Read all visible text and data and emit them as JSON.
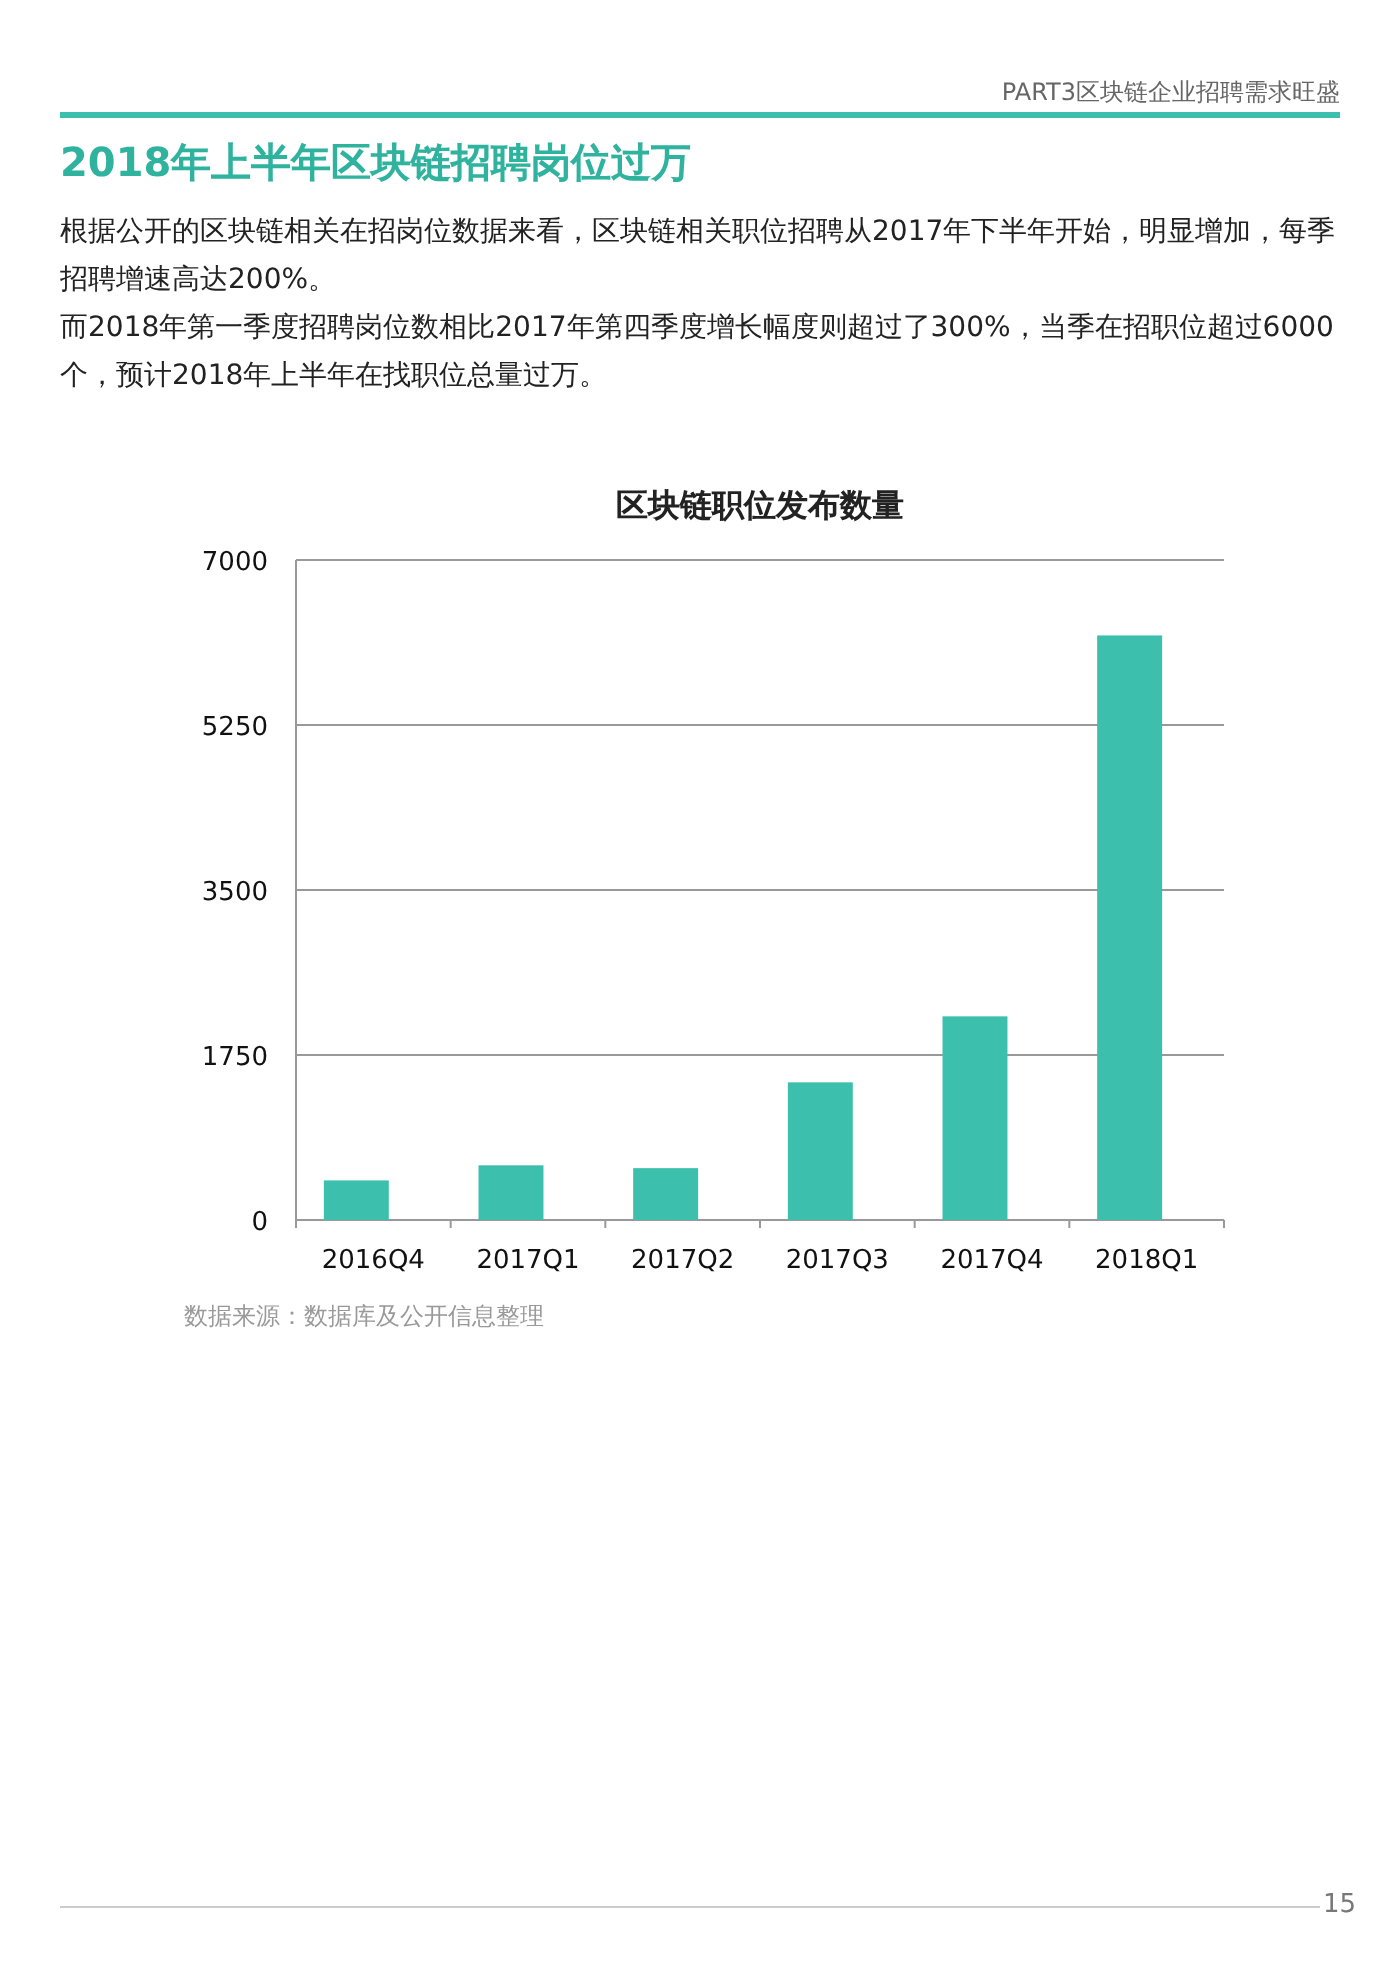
{
  "chart_data": {
    "type": "bar",
    "title": "区块链职位发布数量",
    "categories": [
      "2016Q4",
      "2017Q1",
      "2017Q2",
      "2017Q3",
      "2017Q4",
      "2018Q1"
    ],
    "values": [
      420,
      580,
      550,
      1460,
      2160,
      6200
    ],
    "color": "#3cc0ad",
    "ylim": [
      0,
      7000
    ],
    "yticks": [
      0,
      1750,
      3500,
      5250,
      7000
    ],
    "grid": "y",
    "annotations": [
      "PART3区块链企业招聘需求旺盛",
      "2018年上半年区块链招聘岗位过万",
      "根据公开的区块链相关在招岗位数据来看，区块链相关职位招聘从2017年下半年开始，明显增加，每季招聘增速高达200%。",
      "而2018年第一季度招聘岗位数相比2017年第四季度增长幅度则超过了300%，当季在招职位超过6000个，预计2018年上半年在找职位总量过万。",
      "数据来源：数据库及公开信息整理",
      "15"
    ]
  }
}
